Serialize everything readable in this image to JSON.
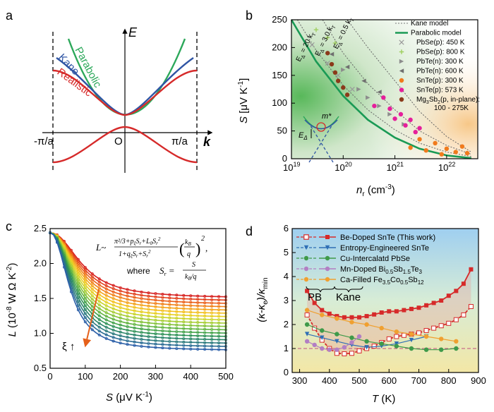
{
  "panels": {
    "a": "a",
    "b": "b",
    "c": "c",
    "d": "d"
  },
  "chart_data": [
    {
      "type": "line",
      "panel": "a",
      "title": "",
      "xlabel": "k",
      "ylabel": "E",
      "origin_label": "O",
      "xticks": [
        "-π/a",
        "π/a"
      ],
      "series": [
        {
          "name": "Parabolic",
          "color": "#2ca85a"
        },
        {
          "name": "Kane",
          "color": "#2f55a4"
        },
        {
          "name": "Realistic",
          "color": "#d62a2a"
        }
      ]
    },
    {
      "type": "scatter",
      "panel": "b",
      "xscale": "log",
      "xlim": [
        1e+19,
        4e+22
      ],
      "ylim": [
        0,
        250
      ],
      "xlabel": "n",
      "xlabel_sub": "r",
      "xlabel_unit": "(cm",
      "xlabel_exp": "-3",
      "ylabel": "S",
      "ylabel_unit": "[μV K",
      "ylabel_exp": "-1",
      "xtick_labels": [
        "10",
        "10",
        "10",
        "10"
      ],
      "xtick_exps": [
        "19",
        "20",
        "21",
        "22"
      ],
      "yticks": [
        0,
        50,
        100,
        150,
        200,
        250
      ],
      "line_labels": [
        "E",
        "E",
        "E"
      ],
      "line_subs": [
        "Δ",
        "Δ",
        "Δ"
      ],
      "line_vals": [
        " = 20 k",
        " = 3.0 k",
        " = 0.5 k"
      ],
      "line_t": [
        "T",
        "T",
        "T"
      ],
      "inset_mass": "m*",
      "inset_gap": "E",
      "inset_gap_sub": "Δ",
      "legend": [
        {
          "label": "Kane model",
          "color": "#777777",
          "marker": "dotted"
        },
        {
          "label": "Parabolic model",
          "color": "#1a9a55",
          "marker": "line"
        },
        {
          "label": "PbSe(p): 450 K",
          "color": "#9a9a9a",
          "marker": "x"
        },
        {
          "label": "PbSe(p): 800 K",
          "color": "#9fcf5f",
          "marker": "plus"
        },
        {
          "label": "PbTe(n): 300 K",
          "color": "#8c8c8c",
          "marker": "tri-right"
        },
        {
          "label": "PbTe(n): 600 K",
          "color": "#6f6f6f",
          "marker": "tri-left"
        },
        {
          "label": "SnTe(p): 300 K",
          "color": "#f07a1c",
          "marker": "circle"
        },
        {
          "label": "SnTe(p): 573 K",
          "color": "#e51f9b",
          "marker": "circle"
        },
        {
          "label_pre": "Mg",
          "label_sub": "3",
          "label_mid": "Sb",
          "label_sub2": "2",
          "label_post": "(p, in-plane):",
          "label2": "100 - 275K",
          "color": "#8b3a1a",
          "marker": "circle"
        }
      ],
      "parabolic_model": {
        "x": [
          1e+19,
          3e+19,
          1e+20,
          3e+20,
          1e+21,
          3e+21,
          1e+22,
          3e+22
        ],
        "y": [
          250,
          175,
          113,
          70,
          38,
          18,
          6,
          1
        ]
      },
      "kane_models": [
        {
          "name": "EΔ = 20 kT",
          "x": [
            1.3e+19,
            3e+19,
            1e+20,
            3e+20,
            1e+21,
            3e+21,
            1e+22,
            3e+22
          ],
          "y": [
            250,
            195,
            132,
            88,
            52,
            28,
            12,
            4
          ]
        },
        {
          "name": "EΔ = 3.0 kT",
          "x": [
            4e+19,
            1e+20,
            3e+20,
            1e+21,
            3e+21,
            1e+22,
            3e+22
          ],
          "y": [
            250,
            190,
            135,
            88,
            50,
            24,
            8
          ]
        },
        {
          "name": "EΔ = 0.5 kT",
          "x": [
            1.2e+20,
            3e+20,
            1e+21,
            3e+21,
            1e+22,
            3e+22
          ],
          "y": [
            250,
            200,
            140,
            85,
            40,
            12
          ]
        }
      ],
      "points": {
        "PbSe(p): 450 K": {
          "x": [
            2.5e+19,
            5e+19,
            8e+19,
            1.5e+20
          ],
          "y": [
            205,
            172,
            150,
            125
          ]
        },
        "PbSe(p): 800 K": {
          "x": [
            3e+19,
            5e+19,
            7e+19
          ],
          "y": [
            232,
            218,
            208
          ]
        },
        "PbTe(n): 300 K": {
          "x": [
            1e+20,
            2e+20,
            3e+20,
            5e+20,
            8e+20,
            1.5e+21
          ],
          "y": [
            160,
            125,
            110,
            95,
            80,
            62
          ]
        },
        "PbTe(n): 600 K": {
          "x": [
            6e+19,
            1.2e+20,
            2.5e+20,
            5e+20
          ],
          "y": [
            188,
            165,
            140,
            120
          ]
        },
        "SnTe(p): 300 K": {
          "x": [
            2e+21,
            3e+21,
            4e+21,
            6e+21,
            8e+21,
            1e+22,
            1.5e+22,
            2e+22,
            2.5e+22
          ],
          "y": [
            20,
            35,
            15,
            28,
            8,
            18,
            12,
            22,
            10
          ]
        },
        "SnTe(p): 573 K": {
          "x": [
            4e+20,
            6e+20,
            8e+20,
            1e+21,
            1.3e+21,
            1.6e+21,
            2e+21,
            2.5e+21,
            3e+21
          ],
          "y": [
            95,
            110,
            90,
            72,
            80,
            60,
            70,
            48,
            55
          ]
        },
        "Mg3Sb2": {
          "x": [
            5e+19,
            6e+19,
            7e+19,
            8e+19,
            1e+20,
            1.2e+20
          ],
          "y": [
            190,
            170,
            155,
            140,
            128,
            115
          ]
        }
      }
    },
    {
      "type": "line",
      "panel": "c",
      "xlim": [
        0,
        500
      ],
      "ylim": [
        0.5,
        2.5
      ],
      "xlabel": "S",
      "xlabel_unit": "(μV K",
      "xlabel_exp": "-1",
      "ylabel": "L",
      "ylabel_unit": "(10",
      "ylabel_e1": "-8",
      "ylabel_mid": " W Ω K",
      "ylabel_e2": "-2",
      "xticks": [
        0,
        100,
        200,
        300,
        400,
        500
      ],
      "yticks": [
        0.5,
        1.0,
        1.5,
        2.0,
        2.5
      ],
      "ytick_labels": [
        "0.5",
        "1.0",
        "1.5",
        "2.0",
        "2.5"
      ],
      "arrow_label": "ξ ↑",
      "formula": {
        "lhs": "L~",
        "num": "π²/3+p",
        "num2": "ξ",
        "num3": "S",
        "num4": "r",
        "num5": "+L",
        "num6": "0",
        "num7": "S",
        "num8": "r",
        "num9": "2",
        "den": "1+q",
        "den2": "ξ",
        "den3": "S",
        "den4": "r",
        "den5": "+S",
        "den6": "r",
        "den7": "2",
        "frac2_num": "k",
        "frac2_num_sub": "B",
        "frac2_den": "q",
        "exp": "2",
        "where": "where",
        "sr": "S",
        "sr_sub": "r",
        "eq": "=",
        "sr_num": "S",
        "sr_den": "k",
        "sr_den_sub": "B",
        "sr_den2": "/q"
      },
      "curves": {
        "count": 17,
        "L0": 2.44,
        "Linf_min": 0.75,
        "Linf_max": 1.5,
        "colors": [
          "#d6201f",
          "#e2401c",
          "#ea6019",
          "#f08219",
          "#f4a41c",
          "#f3c01e",
          "#e6cf22",
          "#c9d42a",
          "#a6cd33",
          "#84c23a",
          "#62b441",
          "#44a34a",
          "#2f9257",
          "#2a8568",
          "#2b7a7d",
          "#2b6d94",
          "#2b5fa8"
        ]
      }
    },
    {
      "type": "line",
      "panel": "d",
      "xlim": [
        275,
        900
      ],
      "ylim": [
        0,
        6
      ],
      "xlabel": "T",
      "xlabel_unit": "(K)",
      "ylabel": "(κ-κ",
      "ylabel_sub": "e",
      "ylabel_post": ")/κ",
      "ylabel_sub2": "min",
      "xticks": [
        300,
        400,
        500,
        600,
        700,
        800,
        900
      ],
      "yticks": [
        0,
        1,
        2,
        3,
        4,
        5,
        6
      ],
      "bracket_labels": [
        "PB",
        "Kane"
      ],
      "legend": [
        {
          "label": "Be-Doped SnTe (This work)",
          "color": "#d62a2a",
          "marker": "square"
        },
        {
          "label": "Entropy-Engineered SnTe",
          "color": "#2f6fb5",
          "marker": "tri-down"
        },
        {
          "label": "Cu-Intercalatd PbSe",
          "color": "#3f9a4a",
          "marker": "circle"
        },
        {
          "label_pre": "Mn-Doped Bi",
          "label_sub": "0.5",
          "label_mid": "Sb",
          "label_sub2": "1.5",
          "label_mid2": "Te",
          "label_sub3": "3",
          "color": "#b27fc4",
          "marker": "circle"
        },
        {
          "label_pre": "Ca-Filled  Fe",
          "label_sub": "3.5",
          "label_mid": "Co",
          "label_sub2": "0.5",
          "label_mid2": "Sb",
          "label_sub3": "12",
          "color": "#f0a030",
          "marker": "circle"
        }
      ],
      "series": [
        {
          "name": "Be-Doped SnTe upper",
          "color": "#d62a2a",
          "x": [
            325,
            350,
            375,
            400,
            425,
            450,
            475,
            500,
            525,
            550,
            575,
            600,
            625,
            650,
            675,
            700,
            725,
            750,
            775,
            800,
            825,
            850,
            875
          ],
          "y": [
            3.4,
            2.9,
            2.6,
            2.45,
            2.35,
            2.3,
            2.3,
            2.3,
            2.35,
            2.42,
            2.5,
            2.55,
            2.55,
            2.6,
            2.65,
            2.7,
            2.8,
            2.9,
            3.0,
            3.2,
            3.4,
            3.7,
            4.3
          ]
        },
        {
          "name": "Be-Doped SnTe lower",
          "color": "#d62a2a",
          "x": [
            325,
            350,
            375,
            400,
            425,
            450,
            475,
            500,
            525,
            550,
            575,
            600,
            625,
            650,
            675,
            700,
            725,
            750,
            775,
            800,
            825,
            850,
            875
          ],
          "y": [
            2.4,
            1.85,
            1.35,
            1.0,
            0.8,
            0.78,
            0.8,
            0.9,
            1.0,
            1.1,
            1.25,
            1.4,
            1.5,
            1.55,
            1.6,
            1.65,
            1.75,
            1.85,
            1.95,
            2.05,
            2.2,
            2.4,
            2.75
          ]
        },
        {
          "name": "Entropy-Engineered SnTe",
          "color": "#2f6fb5",
          "x": [
            325,
            375,
            425,
            475,
            525,
            575,
            625,
            675,
            725
          ],
          "y": [
            1.6,
            1.45,
            1.3,
            1.15,
            1.05,
            1.1,
            1.2,
            1.35,
            1.5
          ]
        },
        {
          "name": "Cu-Intercalatd PbSe",
          "color": "#3f9a4a",
          "x": [
            325,
            375,
            425,
            475,
            525,
            575,
            625,
            675,
            725,
            775,
            825
          ],
          "y": [
            2.0,
            1.75,
            1.6,
            1.45,
            1.3,
            1.2,
            1.1,
            1.0,
            0.95,
            0.95,
            1.0
          ]
        },
        {
          "name": "Mn-Doped Bi0.5Sb1.5Te3",
          "color": "#b27fc4",
          "x": [
            325,
            350,
            375,
            400,
            425,
            450,
            475,
            500
          ],
          "y": [
            1.3,
            1.15,
            1.0,
            0.95,
            0.95,
            1.05,
            1.25,
            1.5
          ]
        },
        {
          "name": "Ca-Filled Fe3.5Co0.5Sb12",
          "color": "#f0a030",
          "x": [
            325,
            375,
            425,
            475,
            525,
            575,
            625,
            675,
            725,
            775,
            825
          ],
          "y": [
            2.6,
            2.4,
            2.25,
            2.1,
            2.0,
            1.85,
            1.7,
            1.6,
            1.5,
            1.4,
            1.3
          ]
        }
      ],
      "reference_y": 1.0
    }
  ]
}
